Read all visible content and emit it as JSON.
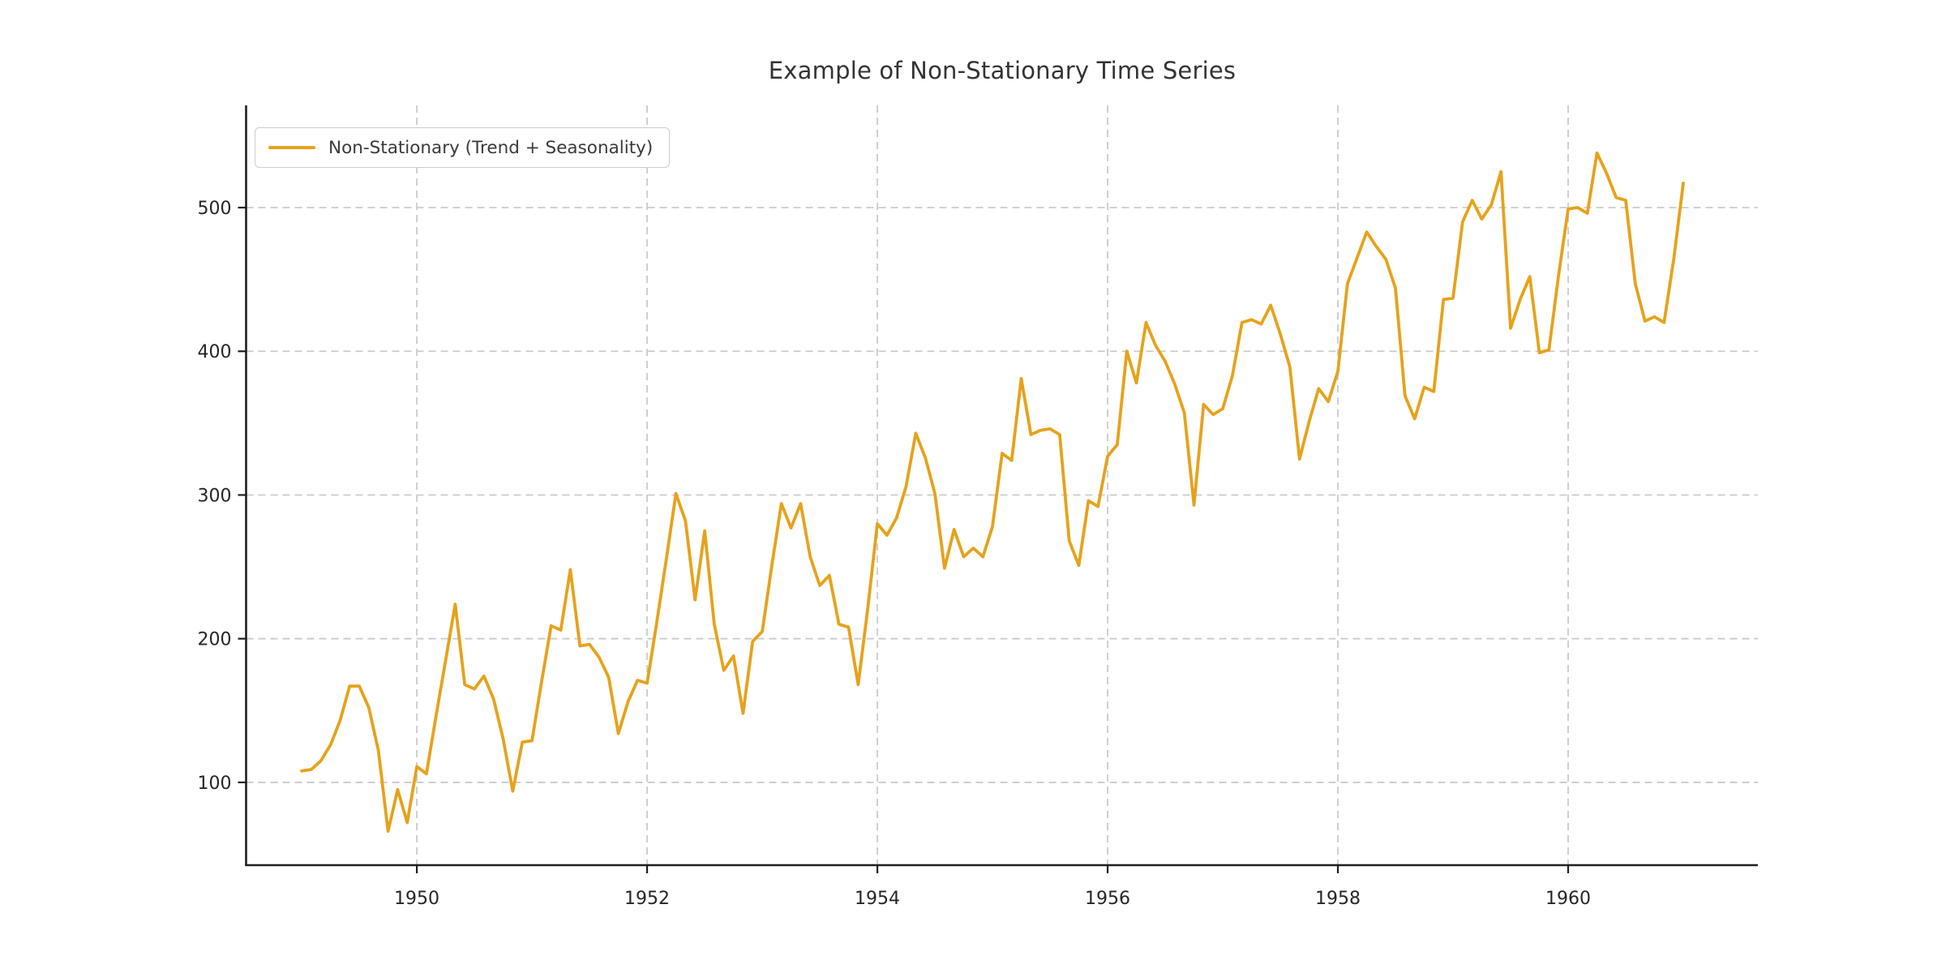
{
  "chart_title": "Example of Non-Stationary Time Series",
  "legend": {
    "label": "Non-Stationary (Trend + Seasonality)"
  },
  "colors": {
    "line": "#E6A21C",
    "grid": "#CBCBCB",
    "spine": "#1F1F1F",
    "tick_label": "#262626",
    "title": "#333333",
    "legend_border": "#CCCCCC",
    "background": "#FFFFFF"
  },
  "chart_data": {
    "type": "line",
    "title": "Example of Non-Stationary Time Series",
    "xlabel": "",
    "ylabel": "",
    "grid": "dashed",
    "legend_position": "upper left",
    "xticks": [
      1950,
      1952,
      1954,
      1956,
      1958,
      1960
    ],
    "yticks": [
      100,
      200,
      300,
      400,
      500
    ],
    "xlim": [
      1948.517,
      1961.648
    ],
    "ylim": [
      42.4,
      571.1
    ],
    "series": [
      {
        "name": "Non-Stationary (Trend + Seasonality)",
        "color": "#E6A21C",
        "start_year": 1949,
        "frequency": "monthly",
        "values": [
          108,
          109,
          115,
          126,
          143,
          167,
          167,
          152,
          122,
          66,
          95,
          72,
          111,
          106,
          146,
          185,
          224,
          168,
          165,
          174,
          158,
          130,
          94,
          128,
          129,
          170,
          209,
          206,
          248,
          195,
          196,
          187,
          173,
          134,
          156,
          171,
          169,
          211,
          255,
          301,
          282,
          227,
          275,
          210,
          178,
          188,
          148,
          198,
          205,
          251,
          294,
          277,
          294,
          257,
          237,
          244,
          210,
          208,
          168,
          221,
          280,
          272,
          284,
          306,
          343,
          326,
          301,
          249,
          276,
          257,
          263,
          257,
          278,
          329,
          324,
          381,
          342,
          345,
          346,
          342,
          268,
          251,
          296,
          292,
          327,
          335,
          400,
          378,
          420,
          404,
          393,
          377,
          357,
          293,
          363,
          356,
          360,
          383,
          420,
          422,
          419,
          432,
          412,
          389,
          325,
          351,
          374,
          365,
          386,
          447,
          465,
          483,
          473,
          464,
          444,
          369,
          353,
          375,
          372,
          436,
          437,
          490,
          505,
          492,
          502,
          525,
          416,
          436,
          452,
          399,
          401,
          453,
          499,
          500,
          496,
          538,
          524,
          507,
          505,
          447,
          421,
          424,
          420,
          464,
          517
        ]
      }
    ]
  }
}
